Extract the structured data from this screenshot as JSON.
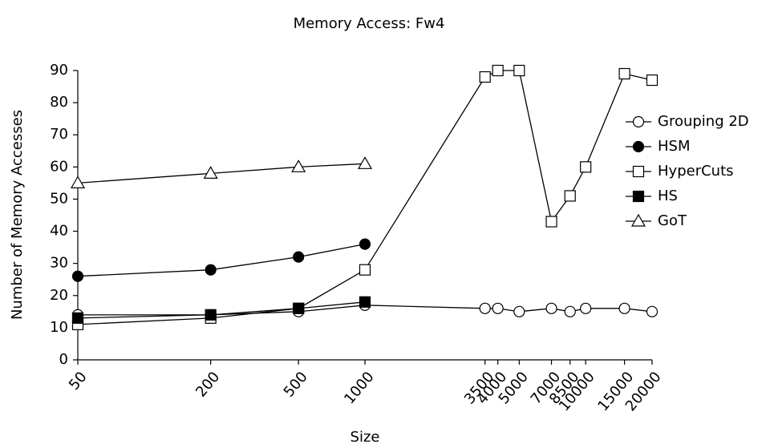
{
  "chart_data": {
    "type": "line",
    "title": "Memory Access: Fw4",
    "x_label": "Size",
    "y_label": "Number of Memory Accesses",
    "x": [
      50,
      200,
      500,
      1000,
      3500,
      4000,
      5000,
      7000,
      8500,
      10000,
      15000,
      20000
    ],
    "xlim": [
      50,
      20000
    ],
    "xticks": [
      50,
      200,
      500,
      1000,
      3500,
      4000,
      5000,
      7000,
      8500,
      10000,
      15000,
      20000
    ],
    "xscale": "log",
    "ylim": [
      0,
      90
    ],
    "yticks": [
      0,
      10,
      20,
      30,
      40,
      50,
      60,
      70,
      80,
      90
    ],
    "grid": false,
    "legend": "right",
    "series": [
      {
        "name": "Grouping 2D",
        "color": "#000000",
        "marker": "circle",
        "filled": false,
        "values": [
          14,
          14,
          15,
          17,
          16,
          16,
          15,
          16,
          15,
          16,
          16,
          15
        ]
      },
      {
        "name": "HSM",
        "color": "#000000",
        "marker": "circle",
        "filled": true,
        "values": [
          26,
          28,
          32,
          36,
          null,
          null,
          null,
          null,
          null,
          null,
          null,
          null
        ]
      },
      {
        "name": "HyperCuts",
        "color": "#000000",
        "marker": "square",
        "filled": false,
        "values": [
          11,
          13,
          16,
          28,
          88,
          90,
          90,
          43,
          51,
          60,
          89,
          87
        ]
      },
      {
        "name": "HS",
        "color": "#000000",
        "marker": "square",
        "filled": true,
        "values": [
          13,
          14,
          16,
          18,
          null,
          null,
          null,
          null,
          null,
          null,
          null,
          null
        ]
      },
      {
        "name": "GoT",
        "color": "#000000",
        "marker": "triangle",
        "filled": false,
        "values": [
          55,
          58,
          60,
          61,
          null,
          null,
          null,
          null,
          null,
          null,
          null,
          null
        ]
      }
    ]
  }
}
